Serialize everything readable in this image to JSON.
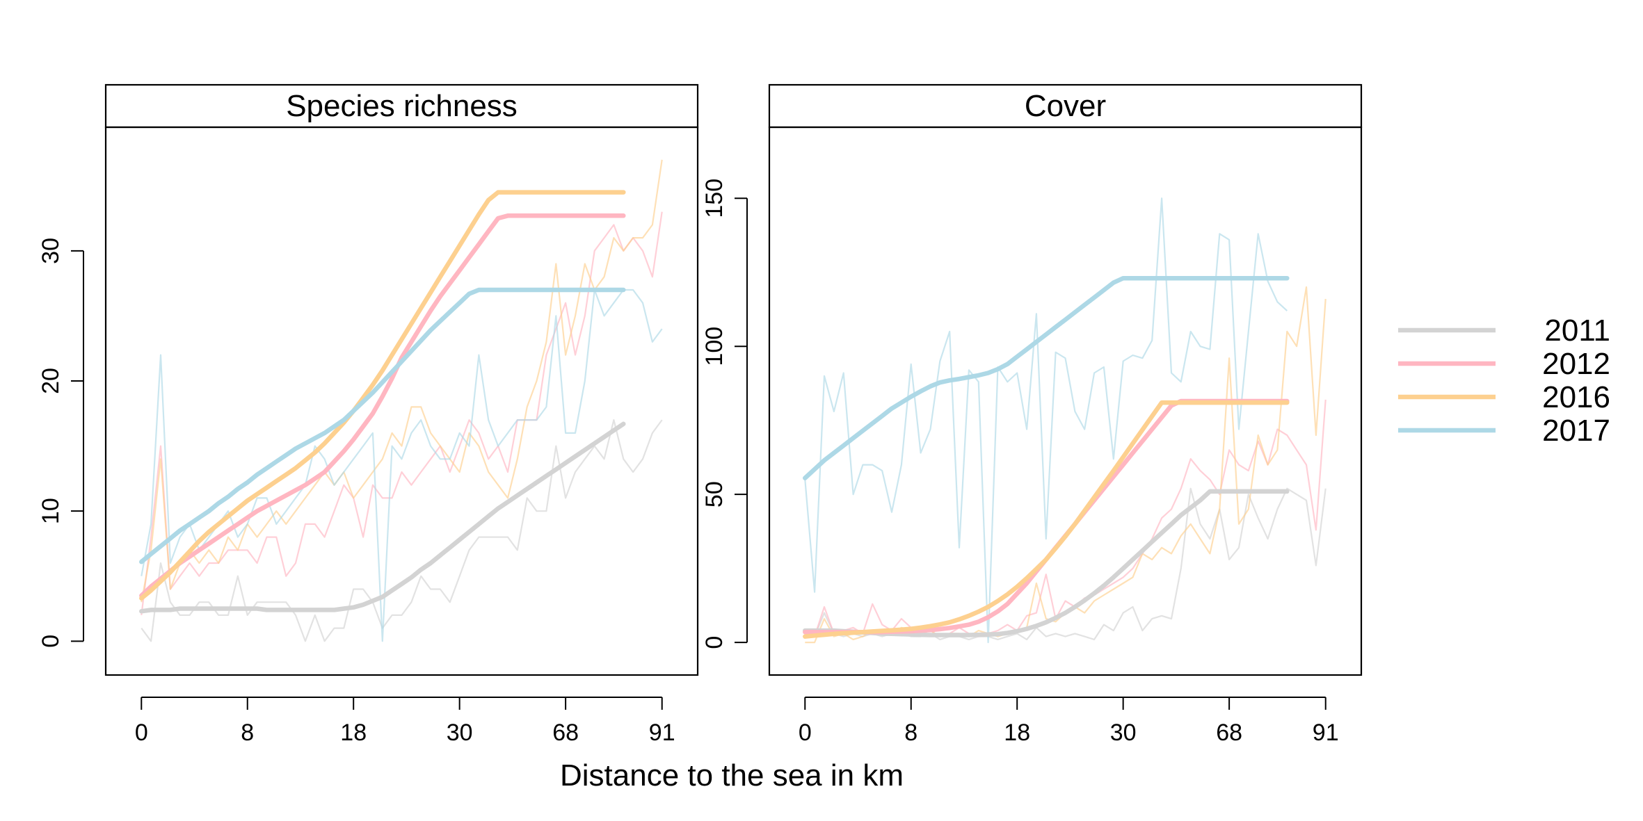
{
  "xlabel": "Distance to the sea in km",
  "legend": {
    "placement": "right",
    "entries": [
      {
        "label": "2011",
        "color": "#d3d3d3"
      },
      {
        "label": "2012",
        "color": "#ffb6c1"
      },
      {
        "label": "2016",
        "color": "#fdd08f"
      },
      {
        "label": "2017",
        "color": "#add8e6"
      }
    ]
  },
  "chart_data": [
    {
      "type": "line",
      "title": "Species richness",
      "x_tick_labels": [
        "0",
        "8",
        "18",
        "30",
        "68",
        "91"
      ],
      "x_tick_positions": [
        0,
        11,
        22,
        33,
        44,
        54
      ],
      "xlim": [
        -3.7,
        57.7
      ],
      "ylim": [
        -2.6,
        39.5
      ],
      "y_ticks": [
        0,
        10,
        20,
        30
      ],
      "grid": false,
      "series": [
        {
          "name": "2011",
          "color": "#d3d3d3",
          "values": [
            1,
            0,
            6,
            3,
            2,
            2,
            3,
            3,
            2,
            2,
            5,
            2,
            3,
            3,
            3,
            3,
            2,
            0,
            2,
            0,
            1,
            1,
            4,
            4,
            3,
            1,
            2,
            2,
            3,
            5,
            4,
            4,
            3,
            5,
            7,
            8,
            8,
            8,
            8,
            7,
            11,
            10,
            10,
            15,
            11,
            13,
            14,
            15,
            14,
            17,
            14,
            13,
            14,
            16,
            17
          ],
          "smooth": [
            2.3,
            2.4,
            2.4,
            2.4,
            2.5,
            2.5,
            2.5,
            2.5,
            2.5,
            2.5,
            2.5,
            2.5,
            2.5,
            2.4,
            2.4,
            2.4,
            2.4,
            2.4,
            2.4,
            2.4,
            2.4,
            2.5,
            2.6,
            2.8,
            3.1,
            3.4,
            3.9,
            4.4,
            4.9,
            5.5,
            6.0,
            6.6,
            7.2,
            7.8,
            8.4,
            9.0,
            9.6,
            10.2,
            10.7,
            11.2,
            11.7,
            12.2,
            12.7,
            13.2,
            13.7,
            14.2,
            14.7,
            15.2,
            15.7,
            16.2,
            16.7
          ]
        },
        {
          "name": "2012",
          "color": "#ffb6c1",
          "values": [
            2,
            8,
            15,
            4,
            5,
            6,
            5,
            6,
            6,
            7,
            7,
            7,
            6,
            8,
            8,
            5,
            6,
            9,
            9,
            8,
            10,
            12,
            11,
            8,
            12,
            11,
            11,
            13,
            12,
            13,
            14,
            15,
            13,
            15,
            17,
            16,
            14,
            15,
            13,
            17,
            17,
            17,
            22,
            24,
            26,
            22,
            25,
            30,
            31,
            32,
            30,
            31,
            30,
            28,
            33
          ],
          "smooth": [
            3.5,
            4.2,
            4.8,
            5.4,
            6.0,
            6.5,
            7.0,
            7.5,
            8.0,
            8.5,
            9.0,
            9.5,
            10.0,
            10.4,
            10.8,
            11.2,
            11.6,
            12.0,
            12.5,
            13.0,
            13.8,
            14.6,
            15.5,
            16.5,
            17.5,
            18.8,
            20.2,
            21.8,
            23.0,
            24.2,
            25.4,
            26.5,
            27.5,
            28.5,
            29.5,
            30.5,
            31.5,
            32.5,
            32.7,
            32.7,
            32.7,
            32.7,
            32.7,
            32.7,
            32.7,
            32.7,
            32.7,
            32.7,
            32.7,
            32.7,
            32.7
          ]
        },
        {
          "name": "2016",
          "color": "#fdd08f",
          "values": [
            3,
            7,
            14,
            4,
            6,
            7,
            6,
            7,
            6,
            8,
            7,
            9,
            8,
            9,
            10,
            9,
            10,
            11,
            12,
            13,
            12,
            13,
            11,
            12,
            13,
            14,
            16,
            15,
            18,
            18,
            16,
            15,
            14,
            13,
            16,
            15,
            13,
            12,
            11,
            14,
            18,
            20,
            23,
            29,
            22,
            25,
            29,
            27,
            28,
            31,
            30,
            31,
            31,
            32,
            37
          ],
          "smooth": [
            3.3,
            3.9,
            4.6,
            5.3,
            6.1,
            6.9,
            7.7,
            8.4,
            9.0,
            9.6,
            10.2,
            10.8,
            11.3,
            11.8,
            12.3,
            12.8,
            13.3,
            13.9,
            14.5,
            15.2,
            16.0,
            16.8,
            17.7,
            18.7,
            19.7,
            20.8,
            22.0,
            23.2,
            24.4,
            25.6,
            26.8,
            28.0,
            29.2,
            30.4,
            31.6,
            32.8,
            33.9,
            34.5,
            34.5,
            34.5,
            34.5,
            34.5,
            34.5,
            34.5,
            34.5,
            34.5,
            34.5,
            34.5,
            34.5,
            34.5,
            34.5
          ]
        },
        {
          "name": "2017",
          "color": "#add8e6",
          "values": [
            5,
            9,
            22,
            6,
            8,
            9,
            7,
            8,
            9,
            10,
            8,
            9,
            11,
            11,
            9,
            10,
            11,
            12,
            15,
            14,
            12,
            13,
            14,
            15,
            16,
            0,
            15,
            14,
            16,
            17,
            15,
            14,
            14,
            16,
            15,
            22,
            17,
            15,
            16,
            17,
            17,
            17,
            18,
            25,
            16,
            16,
            20,
            27,
            25,
            26,
            27,
            27,
            26,
            23,
            24
          ],
          "smooth": [
            6.1,
            6.7,
            7.3,
            7.9,
            8.5,
            9.0,
            9.5,
            10.0,
            10.6,
            11.1,
            11.7,
            12.2,
            12.8,
            13.3,
            13.8,
            14.3,
            14.8,
            15.2,
            15.6,
            16.0,
            16.5,
            17.0,
            17.7,
            18.4,
            19.1,
            19.9,
            20.7,
            21.5,
            22.3,
            23.1,
            23.9,
            24.6,
            25.3,
            26.0,
            26.7,
            27.0,
            27.0,
            27.0,
            27.0,
            27.0,
            27.0,
            27.0,
            27.0,
            27.0,
            27.0,
            27.0,
            27.0,
            27.0,
            27.0,
            27.0,
            27.0
          ]
        }
      ]
    },
    {
      "type": "line",
      "title": "Cover",
      "x_tick_labels": [
        "0",
        "8",
        "18",
        "30",
        "68",
        "91"
      ],
      "x_tick_positions": [
        0,
        11,
        22,
        33,
        44,
        54
      ],
      "xlim": [
        -3.7,
        57.7
      ],
      "ylim": [
        -11,
        174
      ],
      "y_ticks": [
        0,
        50,
        100,
        150
      ],
      "grid": false,
      "series": [
        {
          "name": "2011",
          "color": "#d3d3d3",
          "values": [
            4,
            2,
            10,
            3,
            2,
            3,
            2,
            3,
            2,
            3,
            3,
            2,
            2,
            3,
            1,
            2,
            2,
            1,
            2,
            2,
            1,
            2,
            3,
            1,
            5,
            2,
            3,
            2,
            3,
            2,
            1,
            6,
            4,
            10,
            12,
            4,
            8,
            9,
            8,
            25,
            52,
            40,
            35,
            45,
            28,
            32,
            50,
            42,
            35,
            45,
            52,
            50,
            48,
            26,
            52
          ],
          "smooth": [
            4,
            4,
            4,
            4,
            3.8,
            3.6,
            3.4,
            3.2,
            3.0,
            2.9,
            2.8,
            2.7,
            2.6,
            2.5,
            2.5,
            2.5,
            2.5,
            2.5,
            2.6,
            2.7,
            2.8,
            3.2,
            3.8,
            4.6,
            5.6,
            6.8,
            8.3,
            10.0,
            12.0,
            14.2,
            16.6,
            19.2,
            22.0,
            25.0,
            28.0,
            31.0,
            34.0,
            37.0,
            40.0,
            43.0,
            45.5,
            48.0,
            51.0,
            51.0,
            51.0,
            51.0,
            51.0,
            51.0,
            51.0,
            51.0,
            51.0
          ]
        },
        {
          "name": "2012",
          "color": "#ffb6c1",
          "values": [
            3,
            2,
            12,
            3,
            4,
            5,
            3,
            13,
            6,
            4,
            8,
            5,
            3,
            4,
            2,
            3,
            5,
            3,
            2,
            3,
            4,
            6,
            4,
            9,
            10,
            23,
            8,
            14,
            12,
            15,
            16,
            18,
            20,
            22,
            25,
            30,
            35,
            42,
            45,
            52,
            62,
            58,
            55,
            50,
            65,
            60,
            58,
            68,
            60,
            72,
            70,
            65,
            60,
            38,
            82
          ],
          "smooth": [
            3.5,
            3.5,
            3.5,
            3.5,
            3.5,
            3.5,
            3.5,
            3.5,
            3.5,
            3.6,
            3.7,
            3.8,
            4.0,
            4.2,
            4.5,
            4.9,
            5.4,
            6.0,
            7.0,
            8.5,
            10.5,
            13.0,
            16.5,
            20.0,
            24.0,
            28.0,
            32.0,
            36.0,
            40.0,
            44.0,
            48.0,
            52.0,
            56.0,
            60.0,
            64.0,
            68.0,
            72.0,
            76.0,
            80.0,
            81.5,
            81.5,
            81.5,
            81.5,
            81.5,
            81.5,
            81.5,
            81.5,
            81.5,
            81.5,
            81.5,
            81.5
          ]
        },
        {
          "name": "2016",
          "color": "#fdd08f",
          "values": [
            0,
            0,
            8,
            2,
            3,
            1,
            2,
            4,
            3,
            3,
            5,
            4,
            3,
            4,
            2,
            3,
            3,
            2,
            4,
            3,
            2,
            3,
            4,
            5,
            20,
            8,
            7,
            10,
            12,
            10,
            14,
            16,
            18,
            20,
            22,
            30,
            28,
            32,
            30,
            36,
            40,
            35,
            30,
            45,
            96,
            40,
            45,
            70,
            60,
            65,
            105,
            100,
            120,
            70,
            116
          ],
          "smooth": [
            2,
            2.3,
            2.6,
            2.9,
            3.1,
            3.3,
            3.5,
            3.7,
            3.9,
            4.1,
            4.3,
            4.6,
            5.0,
            5.5,
            6.1,
            6.8,
            7.8,
            9.0,
            10.4,
            12.0,
            14.0,
            16.2,
            18.8,
            21.7,
            24.8,
            28.0,
            31.8,
            35.8,
            40.0,
            44.5,
            49.0,
            53.5,
            58.0,
            62.6,
            67.2,
            71.8,
            76.4,
            81.0,
            81.0,
            81.0,
            81.0,
            81.0,
            81.0,
            81.0,
            81.0,
            81.0,
            81.0,
            81.0,
            81.0,
            81.0,
            81.0
          ]
        },
        {
          "name": "2017",
          "color": "#add8e6",
          "values": [
            55,
            17,
            90,
            78,
            91,
            50,
            60,
            60,
            58,
            44,
            60,
            94,
            64,
            72,
            95,
            105,
            32,
            92,
            88,
            0,
            93,
            88,
            91,
            72,
            111,
            35,
            98,
            96,
            78,
            72,
            91,
            93,
            62,
            95,
            97,
            96,
            102,
            150,
            91,
            88,
            105,
            100,
            99,
            138,
            136,
            72,
            105,
            138,
            122,
            115,
            112
          ],
          "smooth": [
            55.5,
            58.5,
            61.5,
            64.0,
            66.5,
            69.0,
            71.5,
            74.0,
            76.5,
            79.0,
            81.0,
            83.0,
            84.8,
            86.5,
            87.8,
            88.5,
            89.0,
            89.6,
            90.2,
            91.0,
            92.3,
            94.0,
            96.5,
            99.0,
            101.5,
            104.0,
            106.5,
            109.0,
            111.5,
            114.0,
            116.5,
            119.0,
            121.5,
            123.0,
            123.0,
            123.0,
            123.0,
            123.0,
            123.0,
            123.0,
            123.0,
            123.0,
            123.0,
            123.0,
            123.0,
            123.0,
            123.0,
            123.0,
            123.0,
            123.0,
            123.0
          ]
        }
      ]
    }
  ]
}
